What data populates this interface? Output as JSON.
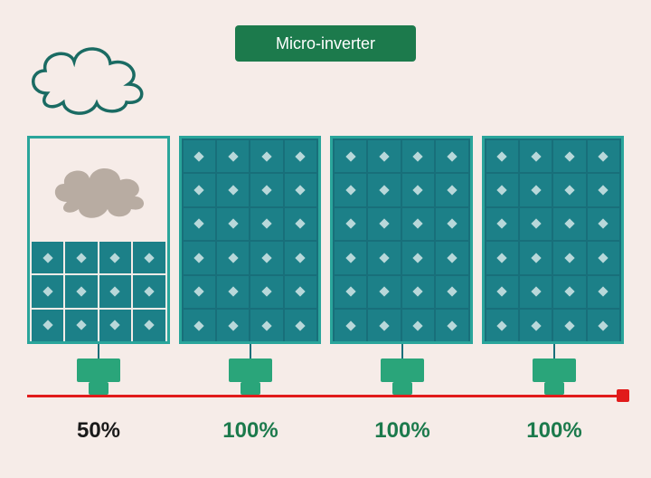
{
  "title": "Micro-inverter",
  "colors": {
    "background": "#f6ece8",
    "title_bg": "#1c7a4c",
    "title_text": "#ffffff",
    "cloud_outline": "#1a6b63",
    "cloud_fill": "#f6ece8",
    "shade_cloud_fill": "#b8aca2",
    "panel_border": "#2aa59b",
    "panel_bg_sun": "#186f7a",
    "cell_fill": "#1c8088",
    "inverter_fill": "#2aa57a",
    "stem": "#186f7a",
    "wire": "#e11b1b",
    "plug": "#e11b1b",
    "label_shaded": "#1a1a1a",
    "label_sun": "#1c7a4c"
  },
  "layout": {
    "panel_count": 4,
    "cells_cols": 4,
    "cells_rows_full": 6,
    "cells_rows_shaded": 3
  },
  "panels": [
    {
      "output_label": "50%",
      "shaded": true,
      "label_color_key": "label_shaded"
    },
    {
      "output_label": "100%",
      "shaded": false,
      "label_color_key": "label_sun"
    },
    {
      "output_label": "100%",
      "shaded": false,
      "label_color_key": "label_sun"
    },
    {
      "output_label": "100%",
      "shaded": false,
      "label_color_key": "label_sun"
    }
  ]
}
